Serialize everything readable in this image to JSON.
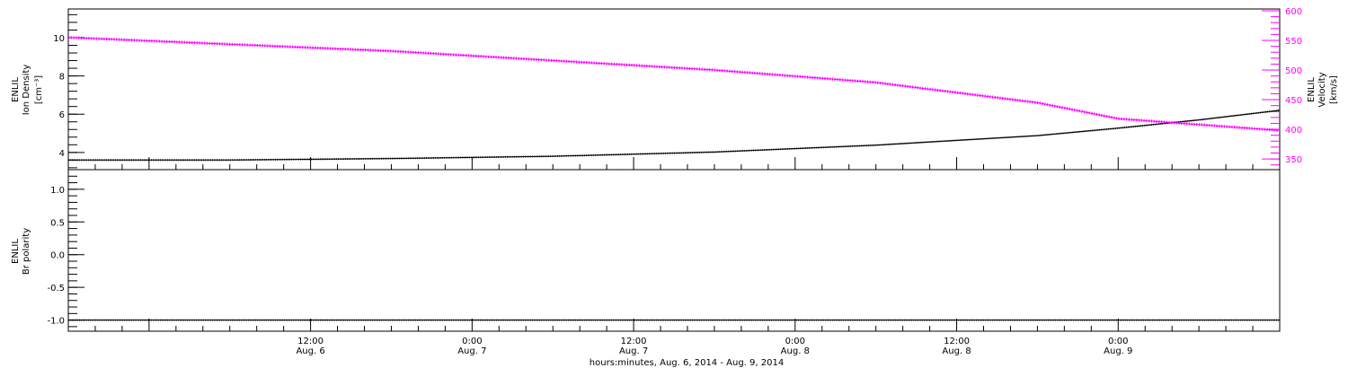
{
  "chart_data": [
    {
      "type": "line",
      "panel": "top",
      "x_range": [
        "2014-08-05T18:00",
        "2014-08-09T12:00"
      ],
      "y_left": {
        "label_lines": [
          "ENLIL",
          "Ion Density",
          "[cm⁻³]"
        ],
        "ylim": [
          3.1,
          11.5
        ],
        "ticks": [
          4,
          6,
          8,
          10
        ],
        "tick_labels": [
          "4",
          "6",
          "8",
          "10"
        ]
      },
      "y_right": {
        "label_lines": [
          "ENLIL",
          "Velocity",
          "[km/s]"
        ],
        "ylim": [
          332,
          603
        ],
        "ticks": [
          350,
          400,
          450,
          500,
          550,
          600
        ],
        "tick_labels": [
          "350",
          "400",
          "450",
          "500",
          "550",
          "600"
        ],
        "color": "#ff00ff"
      },
      "series": [
        {
          "axis": "left",
          "color": "#000000",
          "points": [
            [
              "2014-08-05T18:00",
              3.6
            ],
            [
              "2014-08-06T06:00",
              3.6
            ],
            [
              "2014-08-06T18:00",
              3.68
            ],
            [
              "2014-08-07T06:00",
              3.8
            ],
            [
              "2014-08-07T18:00",
              4.02
            ],
            [
              "2014-08-08T06:00",
              4.38
            ],
            [
              "2014-08-08T18:00",
              4.88
            ],
            [
              "2014-08-09T00:00",
              5.27
            ],
            [
              "2014-08-09T06:00",
              5.7
            ],
            [
              "2014-08-09T12:00",
              6.2
            ]
          ]
        },
        {
          "axis": "right",
          "color": "#ff00ff",
          "points": [
            [
              "2014-08-05T18:00",
              555
            ],
            [
              "2014-08-06T18:00",
              532
            ],
            [
              "2014-08-07T18:00",
              500
            ],
            [
              "2014-08-08T06:00",
              479
            ],
            [
              "2014-08-08T18:00",
              445
            ],
            [
              "2014-08-09T00:00",
              418
            ],
            [
              "2014-08-09T12:00",
              398
            ]
          ]
        }
      ]
    },
    {
      "type": "line",
      "panel": "bottom",
      "x_range": [
        "2014-08-05T18:00",
        "2014-08-09T12:00"
      ],
      "y_left": {
        "label_lines": [
          "ENLIL",
          "Br polarity"
        ],
        "ylim": [
          -1.17,
          1.3
        ],
        "ticks": [
          -1.0,
          -0.5,
          0.0,
          0.5,
          1.0
        ],
        "tick_labels": [
          "-1.0",
          "-0.5",
          "0.0",
          "0.5",
          "1.0"
        ]
      },
      "series": [
        {
          "axis": "left",
          "color": "#000000",
          "points": [
            [
              "2014-08-05T18:00",
              -1.0
            ],
            [
              "2014-08-09T12:00",
              -1.0
            ]
          ]
        }
      ]
    }
  ],
  "x_axis": {
    "major_ticks": [
      {
        "time": "2014-08-06T12:00",
        "label1": "12:00",
        "label2": "Aug. 6"
      },
      {
        "time": "2014-08-07T00:00",
        "label1": "0:00",
        "label2": "Aug. 7"
      },
      {
        "time": "2014-08-07T12:00",
        "label1": "12:00",
        "label2": "Aug. 7"
      },
      {
        "time": "2014-08-08T00:00",
        "label1": "0:00",
        "label2": "Aug. 8"
      },
      {
        "time": "2014-08-08T12:00",
        "label1": "12:00",
        "label2": "Aug. 8"
      },
      {
        "time": "2014-08-09T00:00",
        "label1": "0:00",
        "label2": "Aug. 9"
      }
    ],
    "title": "hours:minutes, Aug.  6, 2014 - Aug.  9, 2014"
  }
}
